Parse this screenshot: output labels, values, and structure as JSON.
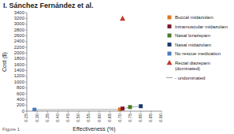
{
  "chart_data": {
    "type": "scatter",
    "title": "I. Sánchez Fernández et al.",
    "xlabel": "Effectiveness (%)",
    "ylabel": "Cost ($)",
    "xlim": [
      0.25,
      0.9
    ],
    "ylim": [
      0,
      3400
    ],
    "xticks": [
      0.25,
      {
        "value": 0.3,
        "label": "0.30"
      },
      0.35,
      {
        "value": 0.4,
        "label": "0.40"
      },
      0.45,
      {
        "value": 0.5,
        "label": "0.50"
      },
      0.55,
      {
        "value": 0.6,
        "label": "0.60"
      },
      0.65,
      {
        "value": 0.7,
        "label": "0.70"
      },
      0.75,
      {
        "value": 0.8,
        "label": "0.80"
      },
      0.85,
      {
        "value": 0.9,
        "label": "0.90"
      }
    ],
    "yticks": [
      0,
      200,
      400,
      600,
      800,
      1000,
      1200,
      1400,
      1600,
      1800,
      2000,
      2200,
      2400,
      2600,
      2800,
      3000,
      3200,
      3400
    ],
    "grid": false,
    "legend": "right",
    "series": [
      {
        "name": "Buccal midazolam",
        "color": "#e07820",
        "marker": "square",
        "x": [
          0.7
        ],
        "values": [
          60
        ]
      },
      {
        "name": "Intramuscular midazolam",
        "color": "#7b1a2e",
        "marker": "square",
        "x": [
          0.712
        ],
        "values": [
          90
        ]
      },
      {
        "name": "Nasal lorazepam",
        "color": "#4a7a28",
        "marker": "square",
        "x": [
          0.748
        ],
        "values": [
          140
        ]
      },
      {
        "name": "Nasal midazolam",
        "color": "#1a3a6b",
        "marker": "square",
        "x": [
          0.8
        ],
        "values": [
          170
        ]
      },
      {
        "name": "No rescue medication",
        "color": "#4a7abf",
        "marker": "square",
        "x": [
          0.287
        ],
        "values": [
          50
        ]
      },
      {
        "name": "Rectal diazepam\n(dominated)",
        "color": "#c0392b",
        "marker": "triangle",
        "x": [
          0.712
        ],
        "values": [
          3200
        ]
      },
      {
        "name": "- undominated",
        "type": "line",
        "color": "#aaaaaa",
        "x": [
          0.287,
          0.7,
          0.748,
          0.8
        ],
        "values": [
          50,
          60,
          140,
          170
        ]
      }
    ],
    "annotations": [
      "Figure 1"
    ]
  }
}
